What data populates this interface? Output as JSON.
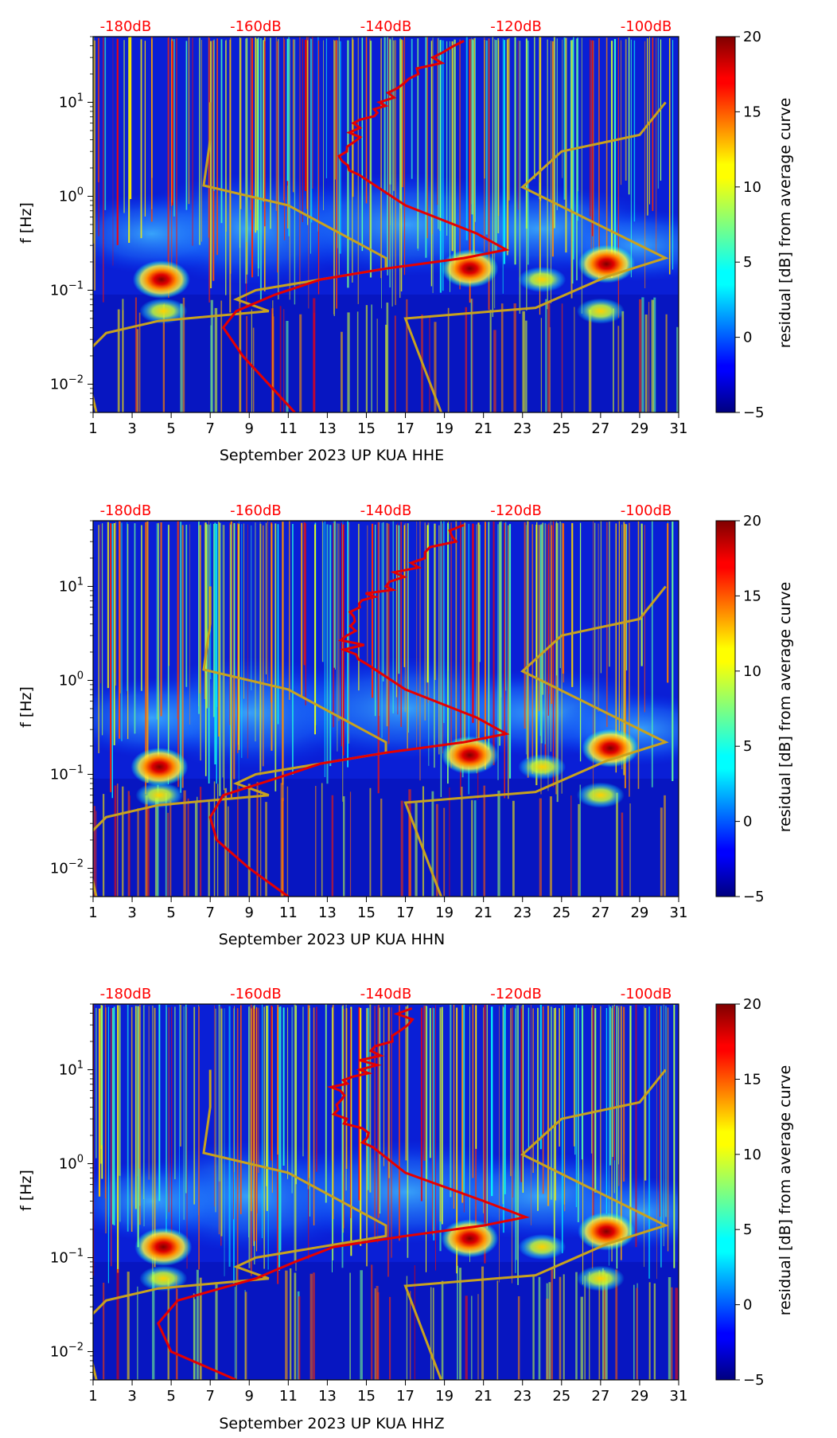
{
  "figure": {
    "colorbar_label": "residual [dB] from average curve",
    "colormap": "jet",
    "ylabel": "f [Hz]",
    "top_axis_color": "#ff0000",
    "median_curve_color": "#e60000",
    "noise_model_color": "#c8a21e"
  },
  "chart_data": [
    {
      "type": "heatmap",
      "title": "",
      "xlabel": "September 2023 UP KUA  HHE",
      "ylabel": "f [Hz]",
      "x_ticks": [
        "1",
        "3",
        "5",
        "7",
        "9",
        "11",
        "13",
        "15",
        "17",
        "19",
        "21",
        "23",
        "25",
        "27",
        "29",
        "31"
      ],
      "x_range": [
        1,
        31
      ],
      "y_scale": "log",
      "y_range": [
        0.005,
        50
      ],
      "y_ticks": [
        {
          "value": 0.01,
          "base": "10",
          "exp": "−2"
        },
        {
          "value": 0.1,
          "base": "10",
          "exp": "−1"
        },
        {
          "value": 1,
          "base": "10",
          "exp": "0"
        },
        {
          "value": 10,
          "base": "10",
          "exp": "1"
        }
      ],
      "top_axis": {
        "range": [
          -185,
          -95
        ],
        "ticks": [
          {
            "value": -180,
            "label": "-180dB"
          },
          {
            "value": -160,
            "label": "-160dB"
          },
          {
            "value": -140,
            "label": "-140dB"
          },
          {
            "value": -120,
            "label": "-120dB"
          },
          {
            "value": -100,
            "label": "-100dB"
          }
        ]
      },
      "colorbar": {
        "range": [
          -5,
          20
        ],
        "ticks": [
          {
            "value": 20,
            "label": "20"
          },
          {
            "value": 15,
            "label": "15"
          },
          {
            "value": 10,
            "label": "10"
          },
          {
            "value": 5,
            "label": "5"
          },
          {
            "value": 0,
            "label": "0"
          },
          {
            "value": -5,
            "label": "−5"
          }
        ]
      },
      "hotspots": [
        {
          "day": 4.5,
          "freq": 0.13,
          "level": 20
        },
        {
          "day": 4.6,
          "freq": 0.06,
          "level": 11
        },
        {
          "day": 20.3,
          "freq": 0.17,
          "level": 20
        },
        {
          "day": 27.3,
          "freq": 0.19,
          "level": 20
        },
        {
          "day": 24.0,
          "freq": 0.13,
          "level": 9
        },
        {
          "day": 27.0,
          "freq": 0.06,
          "level": 8
        }
      ],
      "median_psd_curve": {
        "name": "median PSD (top axis dB)",
        "points": [
          [
            -154.0,
            0.005
          ],
          [
            -158.0,
            0.01
          ],
          [
            -162.0,
            0.02
          ],
          [
            -165.0,
            0.04
          ],
          [
            -163.0,
            0.06
          ],
          [
            -157.0,
            0.09
          ],
          [
            -150.0,
            0.13
          ],
          [
            -140.0,
            0.17
          ],
          [
            -128.0,
            0.22
          ],
          [
            -121.5,
            0.27
          ],
          [
            -126.0,
            0.4
          ],
          [
            -137.0,
            0.8
          ],
          [
            -143.0,
            1.5
          ],
          [
            -146.0,
            3.0
          ],
          [
            -145.0,
            6.0
          ],
          [
            -141.0,
            10.0
          ],
          [
            -135.0,
            20.0
          ],
          [
            -128.0,
            45.0
          ]
        ]
      },
      "noise_model_low": {
        "name": "NLNM (top axis dB)",
        "points": [
          [
            -184.5,
            0.005
          ],
          [
            -185.5,
            0.01
          ],
          [
            -186.5,
            0.02
          ],
          [
            -183.0,
            0.035
          ],
          [
            -175.0,
            0.047
          ],
          [
            -158.0,
            0.06
          ],
          [
            -163.0,
            0.08
          ],
          [
            -160.0,
            0.1
          ],
          [
            -140.0,
            0.17
          ],
          [
            -140.0,
            0.22
          ],
          [
            -155.0,
            0.8
          ],
          [
            -168.0,
            1.3
          ],
          [
            -167.0,
            4.0
          ],
          [
            -167.0,
            10.0
          ]
        ]
      },
      "noise_model_high": {
        "name": "NHNM (top axis dB)",
        "points": [
          [
            -131.5,
            0.005
          ],
          [
            -137.0,
            0.05
          ],
          [
            -117.0,
            0.065
          ],
          [
            -106.0,
            0.14
          ],
          [
            -97.0,
            0.22
          ],
          [
            -119.0,
            1.25
          ],
          [
            -113.0,
            3.0
          ],
          [
            -101.0,
            4.5
          ],
          [
            -97.0,
            10.0
          ]
        ]
      }
    },
    {
      "type": "heatmap",
      "title": "",
      "xlabel": "September 2023 UP KUA  HHN",
      "ylabel": "f [Hz]",
      "x_ticks": [
        "1",
        "3",
        "5",
        "7",
        "9",
        "11",
        "13",
        "15",
        "17",
        "19",
        "21",
        "23",
        "25",
        "27",
        "29",
        "31"
      ],
      "x_range": [
        1,
        31
      ],
      "y_scale": "log",
      "y_range": [
        0.005,
        50
      ],
      "y_ticks": [
        {
          "value": 0.01,
          "base": "10",
          "exp": "−2"
        },
        {
          "value": 0.1,
          "base": "10",
          "exp": "−1"
        },
        {
          "value": 1,
          "base": "10",
          "exp": "0"
        },
        {
          "value": 10,
          "base": "10",
          "exp": "1"
        }
      ],
      "top_axis": {
        "range": [
          -185,
          -95
        ],
        "ticks": [
          {
            "value": -180,
            "label": "-180dB"
          },
          {
            "value": -160,
            "label": "-160dB"
          },
          {
            "value": -140,
            "label": "-140dB"
          },
          {
            "value": -120,
            "label": "-120dB"
          },
          {
            "value": -100,
            "label": "-100dB"
          }
        ]
      },
      "colorbar": {
        "range": [
          -5,
          20
        ],
        "ticks": [
          {
            "value": 20,
            "label": "20"
          },
          {
            "value": 15,
            "label": "15"
          },
          {
            "value": 10,
            "label": "10"
          },
          {
            "value": 5,
            "label": "5"
          },
          {
            "value": 0,
            "label": "0"
          },
          {
            "value": -5,
            "label": "−5"
          }
        ]
      },
      "hotspots": [
        {
          "day": 4.4,
          "freq": 0.12,
          "level": 18
        },
        {
          "day": 4.4,
          "freq": 0.06,
          "level": 12
        },
        {
          "day": 20.3,
          "freq": 0.16,
          "level": 20
        },
        {
          "day": 27.5,
          "freq": 0.19,
          "level": 20
        },
        {
          "day": 24.0,
          "freq": 0.12,
          "level": 9
        },
        {
          "day": 27.0,
          "freq": 0.06,
          "level": 8
        }
      ],
      "median_psd_curve": {
        "name": "median PSD (top axis dB)",
        "points": [
          [
            -155.0,
            0.005
          ],
          [
            -161.0,
            0.01
          ],
          [
            -166.0,
            0.02
          ],
          [
            -167.0,
            0.035
          ],
          [
            -165.0,
            0.06
          ],
          [
            -157.0,
            0.09
          ],
          [
            -150.0,
            0.13
          ],
          [
            -140.0,
            0.17
          ],
          [
            -128.0,
            0.22
          ],
          [
            -121.5,
            0.27
          ],
          [
            -126.0,
            0.4
          ],
          [
            -137.0,
            0.8
          ],
          [
            -143.0,
            1.5
          ],
          [
            -146.0,
            3.0
          ],
          [
            -144.0,
            6.0
          ],
          [
            -140.0,
            10.0
          ],
          [
            -134.0,
            20.0
          ],
          [
            -128.0,
            45.0
          ]
        ]
      },
      "noise_model_low": {
        "name": "NLNM (top axis dB)",
        "points": [
          [
            -184.5,
            0.005
          ],
          [
            -185.5,
            0.01
          ],
          [
            -186.5,
            0.02
          ],
          [
            -183.0,
            0.035
          ],
          [
            -175.0,
            0.047
          ],
          [
            -158.0,
            0.06
          ],
          [
            -163.0,
            0.08
          ],
          [
            -160.0,
            0.1
          ],
          [
            -140.0,
            0.17
          ],
          [
            -140.0,
            0.22
          ],
          [
            -155.0,
            0.8
          ],
          [
            -168.0,
            1.3
          ],
          [
            -167.0,
            4.0
          ],
          [
            -167.0,
            10.0
          ]
        ]
      },
      "noise_model_high": {
        "name": "NHNM (top axis dB)",
        "points": [
          [
            -131.5,
            0.005
          ],
          [
            -137.0,
            0.05
          ],
          [
            -117.0,
            0.065
          ],
          [
            -106.0,
            0.14
          ],
          [
            -97.0,
            0.22
          ],
          [
            -119.0,
            1.25
          ],
          [
            -113.0,
            3.0
          ],
          [
            -101.0,
            4.5
          ],
          [
            -97.0,
            10.0
          ]
        ]
      }
    },
    {
      "type": "heatmap",
      "title": "",
      "xlabel": "September 2023 UP KUA  HHZ",
      "ylabel": "f [Hz]",
      "x_ticks": [
        "1",
        "3",
        "5",
        "7",
        "9",
        "11",
        "13",
        "15",
        "17",
        "19",
        "21",
        "23",
        "25",
        "27",
        "29",
        "31"
      ],
      "x_range": [
        1,
        31
      ],
      "y_scale": "log",
      "y_range": [
        0.005,
        50
      ],
      "y_ticks": [
        {
          "value": 0.01,
          "base": "10",
          "exp": "−2"
        },
        {
          "value": 0.1,
          "base": "10",
          "exp": "−1"
        },
        {
          "value": 1,
          "base": "10",
          "exp": "0"
        },
        {
          "value": 10,
          "base": "10",
          "exp": "1"
        }
      ],
      "top_axis": {
        "range": [
          -185,
          -95
        ],
        "ticks": [
          {
            "value": -180,
            "label": "-180dB"
          },
          {
            "value": -160,
            "label": "-160dB"
          },
          {
            "value": -140,
            "label": "-140dB"
          },
          {
            "value": -120,
            "label": "-120dB"
          },
          {
            "value": -100,
            "label": "-100dB"
          }
        ]
      },
      "colorbar": {
        "range": [
          -5,
          20
        ],
        "ticks": [
          {
            "value": 20,
            "label": "20"
          },
          {
            "value": 15,
            "label": "15"
          },
          {
            "value": 10,
            "label": "10"
          },
          {
            "value": 5,
            "label": "5"
          },
          {
            "value": 0,
            "label": "0"
          },
          {
            "value": -5,
            "label": "−5"
          }
        ]
      },
      "hotspots": [
        {
          "day": 4.6,
          "freq": 0.13,
          "level": 20
        },
        {
          "day": 4.6,
          "freq": 0.06,
          "level": 10
        },
        {
          "day": 20.3,
          "freq": 0.16,
          "level": 20
        },
        {
          "day": 27.3,
          "freq": 0.19,
          "level": 20
        },
        {
          "day": 24.0,
          "freq": 0.13,
          "level": 9
        },
        {
          "day": 27.0,
          "freq": 0.06,
          "level": 8
        }
      ],
      "median_psd_curve": {
        "name": "median PSD (top axis dB)",
        "points": [
          [
            -163.0,
            0.005
          ],
          [
            -173.0,
            0.01
          ],
          [
            -175.0,
            0.02
          ],
          [
            -172.0,
            0.035
          ],
          [
            -160.0,
            0.06
          ],
          [
            -154.0,
            0.09
          ],
          [
            -148.0,
            0.13
          ],
          [
            -137.0,
            0.17
          ],
          [
            -125.0,
            0.22
          ],
          [
            -118.5,
            0.27
          ],
          [
            -125.0,
            0.4
          ],
          [
            -137.0,
            0.8
          ],
          [
            -142.0,
            1.5
          ],
          [
            -146.0,
            3.0
          ],
          [
            -147.0,
            6.0
          ],
          [
            -144.0,
            10.0
          ],
          [
            -139.0,
            20.0
          ],
          [
            -136.0,
            45.0
          ]
        ]
      },
      "noise_model_low": {
        "name": "NLNM (top axis dB)",
        "points": [
          [
            -184.5,
            0.005
          ],
          [
            -185.5,
            0.01
          ],
          [
            -186.5,
            0.02
          ],
          [
            -183.0,
            0.035
          ],
          [
            -175.0,
            0.047
          ],
          [
            -158.0,
            0.06
          ],
          [
            -163.0,
            0.08
          ],
          [
            -160.0,
            0.1
          ],
          [
            -140.0,
            0.17
          ],
          [
            -140.0,
            0.22
          ],
          [
            -155.0,
            0.8
          ],
          [
            -168.0,
            1.3
          ],
          [
            -167.0,
            4.0
          ],
          [
            -167.0,
            10.0
          ]
        ]
      },
      "noise_model_high": {
        "name": "NHNM (top axis dB)",
        "points": [
          [
            -131.5,
            0.005
          ],
          [
            -137.0,
            0.05
          ],
          [
            -117.0,
            0.065
          ],
          [
            -106.0,
            0.14
          ],
          [
            -97.0,
            0.22
          ],
          [
            -119.0,
            1.25
          ],
          [
            -113.0,
            3.0
          ],
          [
            -101.0,
            4.5
          ],
          [
            -97.0,
            10.0
          ]
        ]
      }
    }
  ]
}
